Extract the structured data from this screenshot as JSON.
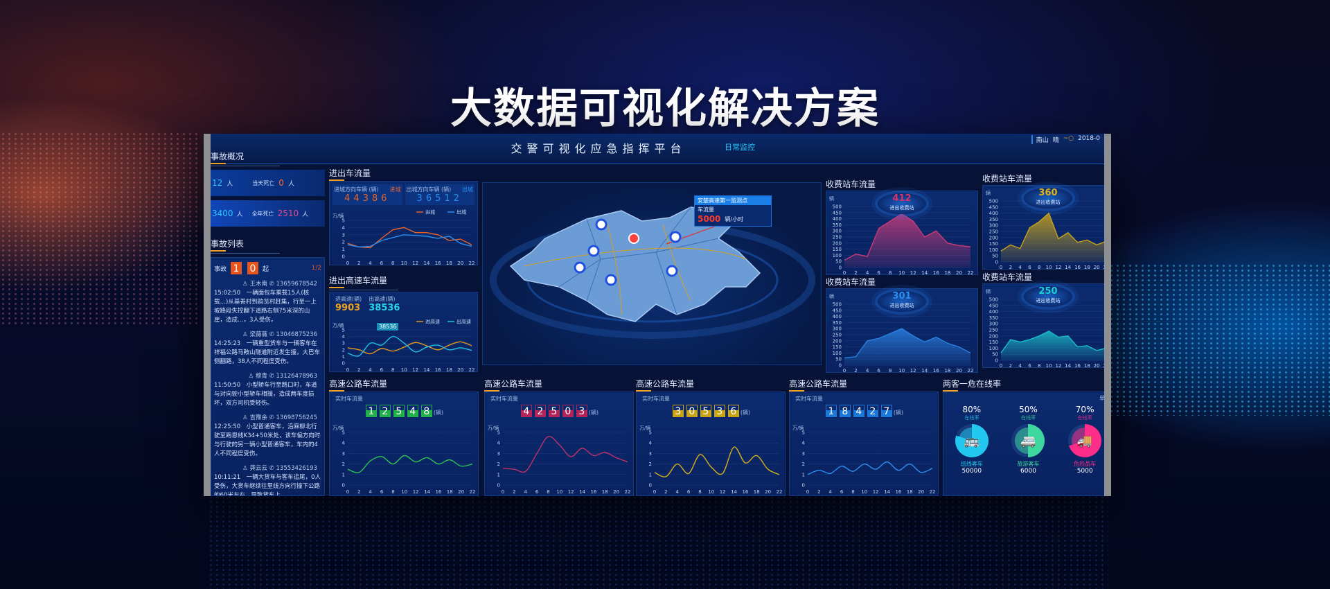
{
  "banner_title": "大数据可视化解决方案",
  "header": {
    "title": "交警可视化应急指挥平台",
    "mode": "日常监控",
    "location": "南山",
    "weather": "晴",
    "weather_icon": "sun-icon",
    "date": "2018-0"
  },
  "overview": {
    "title": "事故概况",
    "row1_value": "12",
    "row1_unit": "人",
    "row1b_label": "当天死亡",
    "row1b_value": "0",
    "row1b_unit": "人",
    "row2_value": "3400",
    "row2_unit": "人",
    "row2b_label": "全年死亡",
    "row2b_value": "2510",
    "row2b_unit": "人"
  },
  "accidents": {
    "title": "事故列表",
    "label": "事故",
    "count": [
      "1",
      "0"
    ],
    "count_unit": "起",
    "page": "1/2",
    "items": [
      {
        "name": "王木南",
        "phone": "13659678542",
        "text": "15:02:50　一辆面包车乘载15人(核载…)从基善村到韵览村赶集，行至一上坡路段失控翻下道路右侧75米深的山崖，造成…，3人受伤。"
      },
      {
        "name": "梁薇薇",
        "phone": "13046875236",
        "text": "14:25:23　一辆重型货车与一辆客车在祥福公路马鞍山隧道附近发生撞，大巴车侧翻路，38人不同程度受伤。"
      },
      {
        "name": "穆青",
        "phone": "13126478963",
        "text": "11:50:50　小型轿车行至路口时，车道与对向驶小型轿车相撞，造成两车度损坏，双方司机受轻伤。"
      },
      {
        "name": "吉豫余",
        "phone": "13698756245",
        "text": "12:25:50　小型普通客车，沿麻柳北行驶至跑恩线K34+50米处，该车偏方向时与行驶的另一辆小型普通客车，车内的4人不同程度受伤。"
      },
      {
        "name": "龚云云",
        "phone": "13553426193",
        "text": "10:11:21　一辆大货车与客车追尾，0人受伤，大货车继续往里线方向行撞下公路的60米左右，导致货车上…"
      }
    ]
  },
  "inout": {
    "title": "进出车流量",
    "in_label": "进城方向车辆 (辆)",
    "in_digits": [
      "4",
      "4",
      "3",
      "8",
      "6"
    ],
    "in_tag": "进城",
    "out_label": "出城方向车辆 (辆)",
    "out_digits": [
      "3",
      "6",
      "5",
      "1",
      "2"
    ],
    "out_tag": "出城",
    "chart": {
      "yunit": "万/辆",
      "ylim": [
        0,
        5
      ],
      "ystep": 1,
      "x": [
        0,
        2,
        4,
        6,
        8,
        10,
        12,
        14,
        16,
        18,
        20,
        22
      ],
      "smooth": false,
      "area": false,
      "series": [
        {
          "name": "进城",
          "color": "#e8652a",
          "values": [
            1.8,
            1.3,
            1.2,
            2.5,
            3.7,
            4.0,
            3.3,
            3.3,
            3.0,
            2.2,
            2.4,
            1.6
          ]
        },
        {
          "name": "出城",
          "color": "#2b8ff0",
          "values": [
            1.6,
            1.3,
            1.4,
            2.2,
            2.6,
            3.0,
            2.9,
            2.8,
            2.5,
            2.8,
            1.8,
            1.4
          ]
        }
      ]
    }
  },
  "highway_inout": {
    "title": "进出高速车流量",
    "in_label": "进高速(辆)",
    "in_value": "9903",
    "out_label": "出高速(辆)",
    "out_value": "38536",
    "tooltip": "38536",
    "chart": {
      "yunit": "万/辆",
      "ylim": [
        0,
        5
      ],
      "ystep": 1,
      "x": [
        0,
        2,
        4,
        6,
        8,
        10,
        12,
        14,
        16,
        18,
        20,
        22
      ],
      "smooth": true,
      "area": false,
      "series": [
        {
          "name": "进高速",
          "color": "#e59a1c",
          "values": [
            2.3,
            2.0,
            1.4,
            2.2,
            1.8,
            2.4,
            3.1,
            2.6,
            2.0,
            2.7,
            3.2,
            2.6
          ]
        },
        {
          "name": "出高速",
          "color": "#1fc2e8",
          "values": [
            1.5,
            1.1,
            3.0,
            2.7,
            4.0,
            3.0,
            1.7,
            2.4,
            2.7,
            2.0,
            2.3,
            1.9
          ]
        }
      ]
    }
  },
  "map": {
    "callout_title": "安楚高速第一监测点",
    "callout_label": "车流量",
    "callout_value": "5000",
    "callout_unit": "辆/小时"
  },
  "toll": [
    {
      "title": "收费站车流量",
      "value": "412",
      "label": "进出收费站",
      "color": "#d6336c",
      "chart": {
        "yunit": "辆",
        "ylim": [
          0,
          500
        ],
        "ystep": 50,
        "x": [
          0,
          2,
          4,
          6,
          8,
          10,
          12,
          14,
          16,
          18,
          20,
          22
        ],
        "smooth": false,
        "area": true,
        "series": [
          {
            "color": "#c83a78",
            "values": [
              60,
              110,
              90,
              320,
              380,
              440,
              380,
              250,
              300,
              200,
              180,
              170
            ]
          }
        ]
      }
    },
    {
      "title": "收费站车流量",
      "value": "360",
      "label": "进出收费站",
      "color": "#e0b21c",
      "chart": {
        "yunit": "辆",
        "ylim": [
          0,
          500
        ],
        "ystep": 50,
        "x": [
          0,
          2,
          4,
          6,
          8,
          10,
          12,
          14,
          16,
          18,
          20,
          22
        ],
        "smooth": false,
        "area": true,
        "series": [
          {
            "color": "#c9a41a",
            "values": [
              90,
              140,
              110,
              280,
              330,
              400,
              190,
              240,
              160,
              180,
              140,
              170
            ]
          }
        ]
      }
    },
    {
      "title": "收费站车流量",
      "value": "301",
      "label": "进出收费站",
      "color": "#2b8ff0",
      "chart": {
        "yunit": "辆",
        "ylim": [
          0,
          500
        ],
        "ystep": 50,
        "x": [
          0,
          2,
          4,
          6,
          8,
          10,
          12,
          14,
          16,
          18,
          20,
          22
        ],
        "smooth": false,
        "area": true,
        "series": [
          {
            "color": "#2a7fe0",
            "values": [
              60,
              70,
              200,
              220,
              260,
              300,
              240,
              190,
              230,
              180,
              150,
              100
            ]
          }
        ]
      }
    },
    {
      "title": "收费站车流量",
      "value": "250",
      "label": "进出收费站",
      "color": "#1fd0d8",
      "chart": {
        "yunit": "辆",
        "ylim": [
          0,
          500
        ],
        "ystep": 50,
        "x": [
          0,
          2,
          4,
          6,
          8,
          10,
          12,
          14,
          16,
          18,
          20,
          22
        ],
        "smooth": false,
        "area": true,
        "series": [
          {
            "color": "#1cbcc8",
            "values": [
              60,
              170,
              150,
              170,
              200,
              240,
              190,
              200,
              110,
              120,
              80,
              100
            ]
          }
        ]
      }
    }
  ],
  "highways": [
    {
      "title": "高速公路车流量",
      "label": "实时车流量",
      "digits": [
        "1",
        "2",
        "5",
        "4",
        "8"
      ],
      "unit": "(辆)",
      "color": "#22b04a",
      "chart": {
        "yunit": "万/辆",
        "ylim": [
          0,
          5
        ],
        "ystep": 1,
        "x": [
          0,
          2,
          4,
          6,
          8,
          10,
          12,
          14,
          16,
          18,
          20,
          22
        ],
        "smooth": true,
        "area": false,
        "series": [
          {
            "color": "#2ec455",
            "values": [
              1.5,
              1.2,
              2.3,
              2.7,
              2.0,
              2.8,
              2.2,
              2.6,
              2.0,
              2.4,
              1.8,
              2.0
            ]
          }
        ]
      }
    },
    {
      "title": "高速公路车流量",
      "label": "实时车流量",
      "digits": [
        "4",
        "2",
        "5",
        "0",
        "3"
      ],
      "unit": "(辆)",
      "color": "#b3245a",
      "chart": {
        "yunit": "万/辆",
        "ylim": [
          0,
          5
        ],
        "ystep": 1,
        "x": [
          0,
          2,
          4,
          6,
          8,
          10,
          12,
          14,
          16,
          18,
          20,
          22
        ],
        "smooth": true,
        "area": false,
        "series": [
          {
            "color": "#c0306a",
            "values": [
              1.6,
              1.5,
              1.3,
              3.0,
              4.6,
              3.8,
              2.7,
              3.5,
              2.8,
              3.1,
              2.6,
              2.2
            ]
          }
        ]
      }
    },
    {
      "title": "高速公路车流量",
      "label": "实时车流量",
      "digits": [
        "3",
        "0",
        "5",
        "3",
        "6"
      ],
      "unit": "(辆)",
      "color": "#c9a415",
      "chart": {
        "yunit": "万/辆",
        "ylim": [
          0,
          5
        ],
        "ystep": 1,
        "x": [
          0,
          2,
          4,
          6,
          8,
          10,
          12,
          14,
          16,
          18,
          20,
          22
        ],
        "smooth": true,
        "area": false,
        "series": [
          {
            "color": "#d6b21a",
            "values": [
              1.2,
              0.8,
              2.0,
              1.1,
              2.9,
              1.7,
              1.1,
              3.6,
              2.1,
              2.8,
              1.5,
              1.0
            ]
          }
        ]
      }
    },
    {
      "title": "高速公路车流量",
      "label": "实时车流量",
      "digits": [
        "1",
        "8",
        "4",
        "2",
        "7"
      ],
      "unit": "(辆)",
      "color": "#1a78d8",
      "chart": {
        "yunit": "万/辆",
        "ylim": [
          0,
          5
        ],
        "ystep": 1,
        "x": [
          0,
          2,
          4,
          6,
          8,
          10,
          12,
          14,
          16,
          18,
          20,
          22
        ],
        "smooth": true,
        "area": false,
        "series": [
          {
            "color": "#2b8ff0",
            "values": [
              1.0,
              1.4,
              1.1,
              1.8,
              1.3,
              2.0,
              1.5,
              2.2,
              1.4,
              2.0,
              1.2,
              1.6
            ]
          }
        ]
      }
    }
  ],
  "online": {
    "title": "两客一危在线率",
    "unit": "单位",
    "items": [
      {
        "percent": "80%",
        "rate_label": "在线率",
        "name": "班线客车",
        "count": "50000",
        "color": "#23c8f0",
        "icon": "bus-icon",
        "glyph": "🚌"
      },
      {
        "percent": "50%",
        "rate_label": "在线率",
        "name": "旅游客车",
        "count": "6000",
        "color": "#3fd7a0",
        "icon": "coach-icon",
        "glyph": "🚐"
      },
      {
        "percent": "70%",
        "rate_label": "在线率",
        "name": "危险品车",
        "count": "5000",
        "color": "#ff2d8a",
        "icon": "hazmat-truck-icon",
        "glyph": "🚚"
      }
    ]
  }
}
